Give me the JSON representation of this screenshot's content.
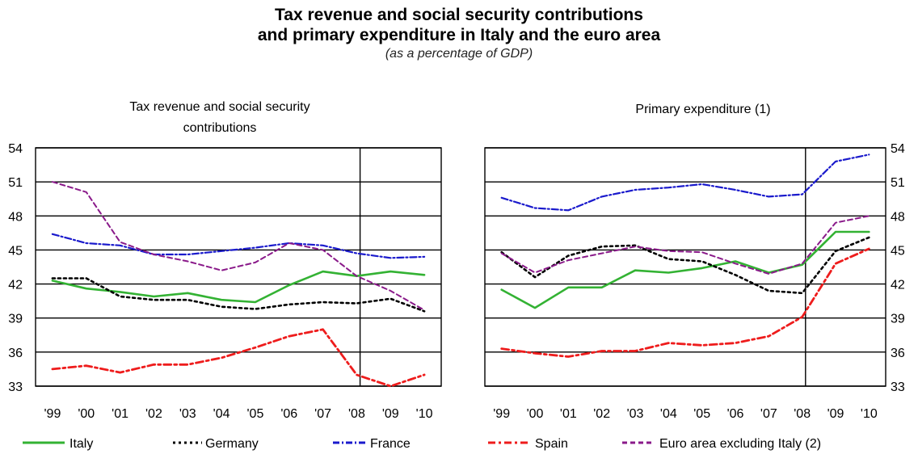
{
  "title_line1": "Tax revenue and social security contributions",
  "title_line2": "and primary expenditure in Italy and the euro area",
  "subtitle": "(as a percentage of GDP)",
  "colors": {
    "Italy": "#33b233",
    "Germany": "#000000",
    "France": "#1a1acc",
    "Spain": "#ee1c1c",
    "Euro area excluding Italy (2)": "#8a1a8a"
  },
  "legend": [
    {
      "name": "Italy",
      "color": "#33b233",
      "dash": "solid"
    },
    {
      "name": "Germany",
      "color": "#000000",
      "dash": "dotted"
    },
    {
      "name": "France",
      "color": "#1a1acc",
      "dash": "dash-dot"
    },
    {
      "name": "Spain",
      "color": "#ee1c1c",
      "dash": "dash-dot"
    },
    {
      "name": "Euro area excluding Italy (2)",
      "color": "#8a1a8a",
      "dash": "dashed"
    }
  ],
  "chart_data": [
    {
      "type": "line",
      "title_lines": [
        "Tax revenue and social security",
        "contributions"
      ],
      "categories": [
        "'99",
        "'00",
        "'01",
        "'02",
        "'03",
        "'04",
        "'05",
        "'06",
        "'07",
        "'08",
        "'09",
        "'10"
      ],
      "ylim": [
        33,
        54
      ],
      "yticks": [
        33,
        36,
        39,
        42,
        45,
        48,
        51,
        54
      ],
      "y_axis_side": "left",
      "forecast_divider_after": "'08",
      "grid": true,
      "series": [
        {
          "name": "Italy",
          "values": [
            42.3,
            41.6,
            41.3,
            40.9,
            41.2,
            40.6,
            40.4,
            41.9,
            43.1,
            42.7,
            43.1,
            42.8
          ]
        },
        {
          "name": "Germany",
          "values": [
            42.5,
            42.5,
            40.9,
            40.6,
            40.6,
            40.0,
            39.8,
            40.2,
            40.4,
            40.3,
            40.7,
            39.6
          ]
        },
        {
          "name": "France",
          "values": [
            46.4,
            45.6,
            45.4,
            44.6,
            44.6,
            44.9,
            45.2,
            45.6,
            45.4,
            44.7,
            44.3,
            44.4
          ]
        },
        {
          "name": "Spain",
          "values": [
            34.5,
            34.8,
            34.2,
            34.9,
            34.9,
            35.5,
            36.4,
            37.4,
            38.0,
            34.0,
            33.0,
            34.0
          ]
        },
        {
          "name": "Euro area excluding Italy (2)",
          "values": [
            51.0,
            50.1,
            45.7,
            44.6,
            44.0,
            43.2,
            43.9,
            45.6,
            45.0,
            42.7,
            41.4,
            39.7
          ]
        }
      ]
    },
    {
      "type": "line",
      "title_lines": [
        "Primary expenditure (1)"
      ],
      "categories": [
        "'99",
        "'00",
        "'01",
        "'02",
        "'03",
        "'04",
        "'05",
        "'06",
        "'07",
        "'08",
        "'09",
        "'10"
      ],
      "ylim": [
        33,
        54
      ],
      "yticks": [
        33,
        36,
        39,
        42,
        45,
        48,
        51,
        54
      ],
      "y_axis_side": "right",
      "forecast_divider_after": "'08",
      "grid": true,
      "series": [
        {
          "name": "Italy",
          "values": [
            41.5,
            39.9,
            41.7,
            41.7,
            43.2,
            43.0,
            43.4,
            44.0,
            43.0,
            43.7,
            46.6,
            46.6
          ]
        },
        {
          "name": "Germany",
          "values": [
            44.8,
            42.6,
            44.5,
            45.3,
            45.4,
            44.2,
            44.0,
            42.8,
            41.4,
            41.2,
            44.9,
            46.1
          ]
        },
        {
          "name": "France",
          "values": [
            49.6,
            48.7,
            48.5,
            49.7,
            50.3,
            50.5,
            50.8,
            50.3,
            49.7,
            49.9,
            52.8,
            53.4
          ]
        },
        {
          "name": "Spain",
          "values": [
            36.3,
            35.9,
            35.6,
            36.1,
            36.1,
            36.8,
            36.6,
            36.8,
            37.4,
            39.1,
            43.8,
            45.1
          ]
        },
        {
          "name": "Euro area excluding Italy (2)",
          "values": [
            44.7,
            43.0,
            44.1,
            44.7,
            45.3,
            44.9,
            44.8,
            43.8,
            42.9,
            43.8,
            47.4,
            48.0
          ]
        }
      ]
    }
  ]
}
